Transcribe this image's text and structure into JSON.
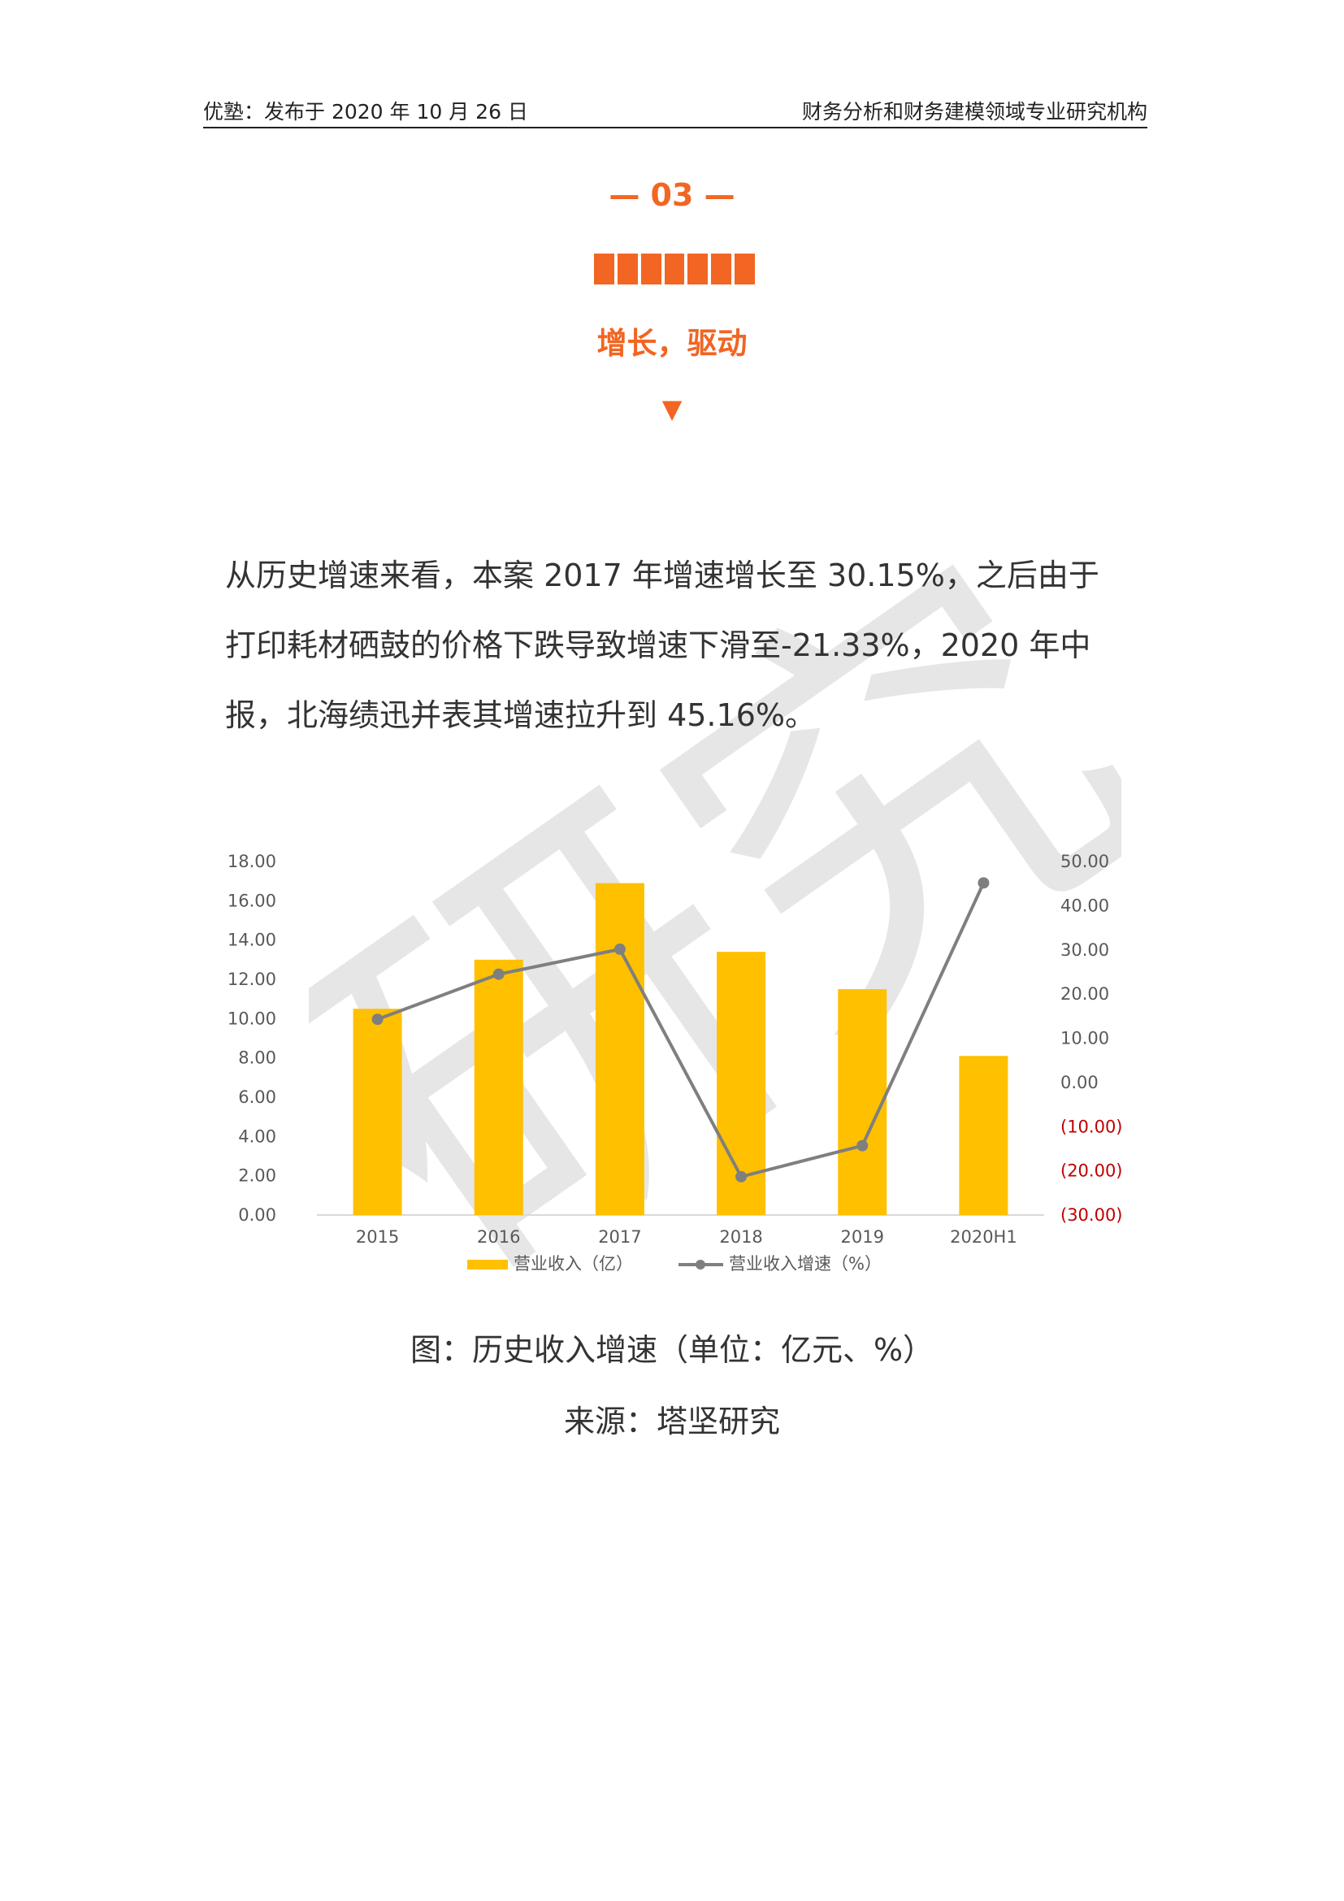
{
  "header": {
    "left": "优塾：发布于 2020 年 10 月 26 日",
    "right": "财务分析和财务建模领域专业研究机构"
  },
  "section": {
    "number": "— 03 —",
    "title": "增长，驱动",
    "arrow": "▼"
  },
  "paragraph": "从历史增速来看，本案 2017 年增速增长至 30.15%，之后由于打印耗材硒鼓的价格下跌导致增速下滑至-21.33%，2020 年中报，北海绩迅并表其增速拉升到 45.16%。",
  "watermark": "研究",
  "caption": "图：历史收入增速（单位：亿元、%）",
  "source": "来源：塔坚研究",
  "colors": {
    "accent": "#f26522",
    "bar": "#ffc000",
    "line": "#7f7f7f",
    "negative": "#c00000"
  },
  "chart_data": {
    "type": "bar",
    "categories": [
      "2015",
      "2016",
      "2017",
      "2018",
      "2019",
      "2020H1"
    ],
    "series": [
      {
        "name": "营业收入（亿）",
        "type": "bar",
        "axis": "left",
        "values": [
          10.5,
          13.0,
          16.9,
          13.4,
          11.5,
          8.1
        ]
      },
      {
        "name": "营业收入增速（%）",
        "type": "line",
        "axis": "right",
        "values": [
          14.3,
          24.5,
          30.15,
          -21.33,
          -14.3,
          45.16
        ]
      }
    ],
    "ylim": [
      0,
      18
    ],
    "yticks": [
      "0.00",
      "2.00",
      "4.00",
      "6.00",
      "8.00",
      "10.00",
      "12.00",
      "14.00",
      "16.00",
      "18.00"
    ],
    "y2lim": [
      -30,
      50
    ],
    "y2ticks": [
      "(30.00)",
      "(20.00)",
      "(10.00)",
      "0.00",
      "10.00",
      "20.00",
      "30.00",
      "40.00",
      "50.00"
    ],
    "legend": "bottom",
    "grid": false
  }
}
